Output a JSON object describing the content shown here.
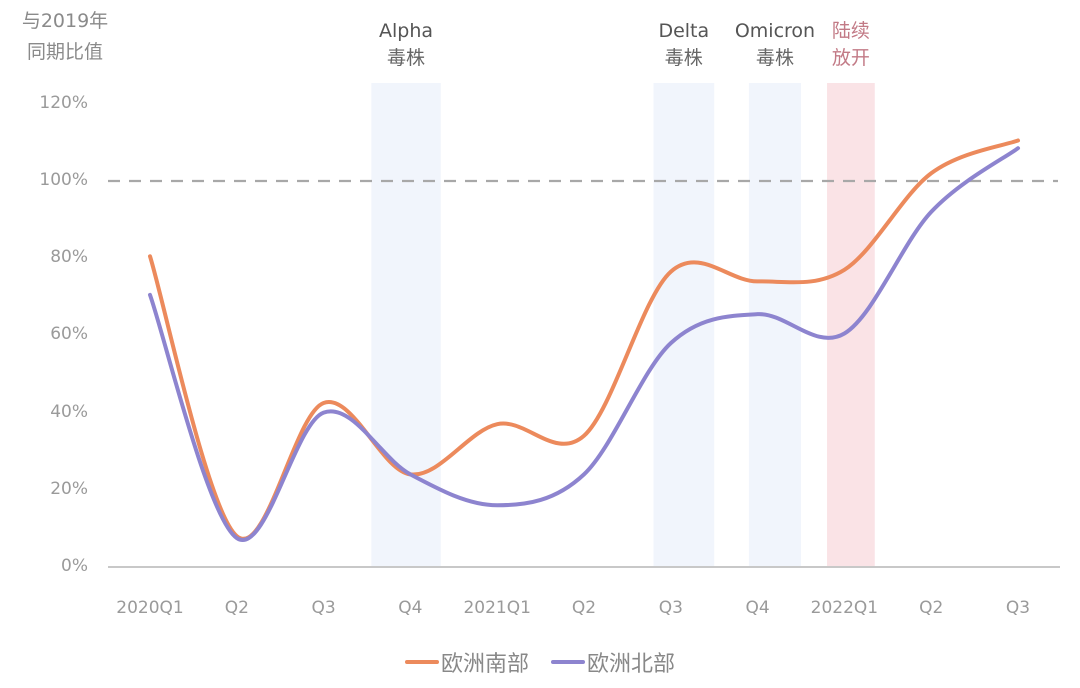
{
  "chart_data": {
    "type": "line",
    "title": "",
    "ylabel": "与2019年同期比值",
    "ylabel_lines": [
      "与2019年",
      "同期比值"
    ],
    "xlabel": "",
    "ylim": [
      0,
      120
    ],
    "yticks": [
      "0%",
      "20%",
      "40%",
      "60%",
      "80%",
      "100%",
      "120%"
    ],
    "ytick_values": [
      0,
      20,
      40,
      60,
      80,
      100,
      120
    ],
    "categories": [
      "2020Q1",
      "Q2",
      "Q3",
      "Q4",
      "2021Q1",
      "Q2",
      "Q3",
      "Q4",
      "2022Q1",
      "Q2",
      "Q3"
    ],
    "series": [
      {
        "name": "欧洲南部",
        "color": "#ec8a5c",
        "values": [
          80.5,
          8,
          42.5,
          24,
          37,
          34,
          76.5,
          74,
          77,
          102,
          110.5
        ]
      },
      {
        "name": "欧洲北部",
        "color": "#8d84cf",
        "values": [
          70.5,
          7.5,
          40,
          24,
          16,
          24,
          58,
          65.5,
          60.5,
          92,
          108.5
        ]
      }
    ],
    "reference_line": {
      "value": 100,
      "style": "dashed",
      "color": "#a8a8a8"
    },
    "annotations": [
      {
        "line1": "Alpha",
        "line2": "毒株",
        "from_index": 2.55,
        "to_index": 3.35,
        "color": "#f1f5fc",
        "text_color": "#555555"
      },
      {
        "line1": "Delta",
        "line2": "毒株",
        "from_index": 5.8,
        "to_index": 6.5,
        "color": "#f1f5fc",
        "text_color": "#555555"
      },
      {
        "line1": "Omicron",
        "line2": "毒株",
        "from_index": 6.9,
        "to_index": 7.5,
        "color": "#f1f5fc",
        "text_color": "#555555"
      },
      {
        "line1": "陆续",
        "line2": "放开",
        "from_index": 7.8,
        "to_index": 8.35,
        "color": "#fae3e6",
        "text_color": "#c27a86"
      }
    ],
    "grid": false,
    "legend_position": "bottom"
  },
  "legend": {
    "items": [
      {
        "label": "欧洲南部",
        "color": "#ec8a5c"
      },
      {
        "label": "欧洲北部",
        "color": "#8d84cf"
      }
    ]
  }
}
